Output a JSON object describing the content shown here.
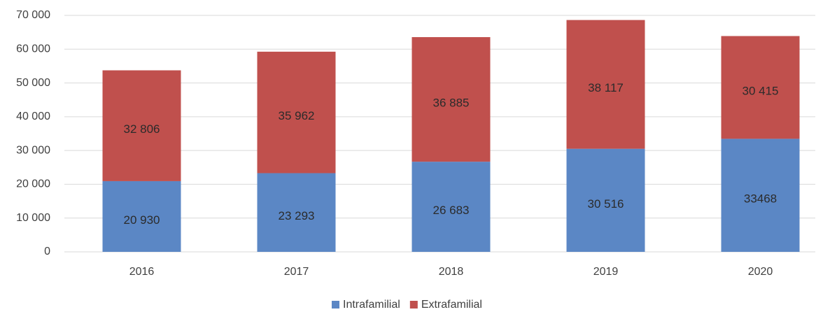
{
  "chart_data": {
    "type": "bar",
    "stacked": true,
    "categories": [
      "2016",
      "2017",
      "2018",
      "2019",
      "2020"
    ],
    "series": [
      {
        "name": "Intrafamilial",
        "color": "#5b87c5",
        "values": [
          20930,
          23293,
          26683,
          30516,
          33468
        ],
        "value_labels": [
          "20 930",
          "23 293",
          "26 683",
          "30 516",
          "33468"
        ]
      },
      {
        "name": "Extrafamilial",
        "color": "#c0504d",
        "values": [
          32806,
          35962,
          36885,
          38117,
          30415
        ],
        "value_labels": [
          "32 806",
          "35 962",
          "36 885",
          "38 117",
          "30 415"
        ]
      }
    ],
    "ylim": [
      0,
      70000
    ],
    "yticks": [
      0,
      {
        "value": 10000,
        "label": "10 000"
      },
      {
        "value": 20000,
        "label": "20 000"
      },
      {
        "value": 30000,
        "label": "30 000"
      },
      {
        "value": 40000,
        "label": "40 000"
      },
      {
        "value": 50000,
        "label": "50 000"
      },
      {
        "value": 60000,
        "label": "60 000"
      },
      {
        "value": 70000,
        "label": "70 000"
      }
    ],
    "grid": true,
    "legend": "bottom"
  }
}
